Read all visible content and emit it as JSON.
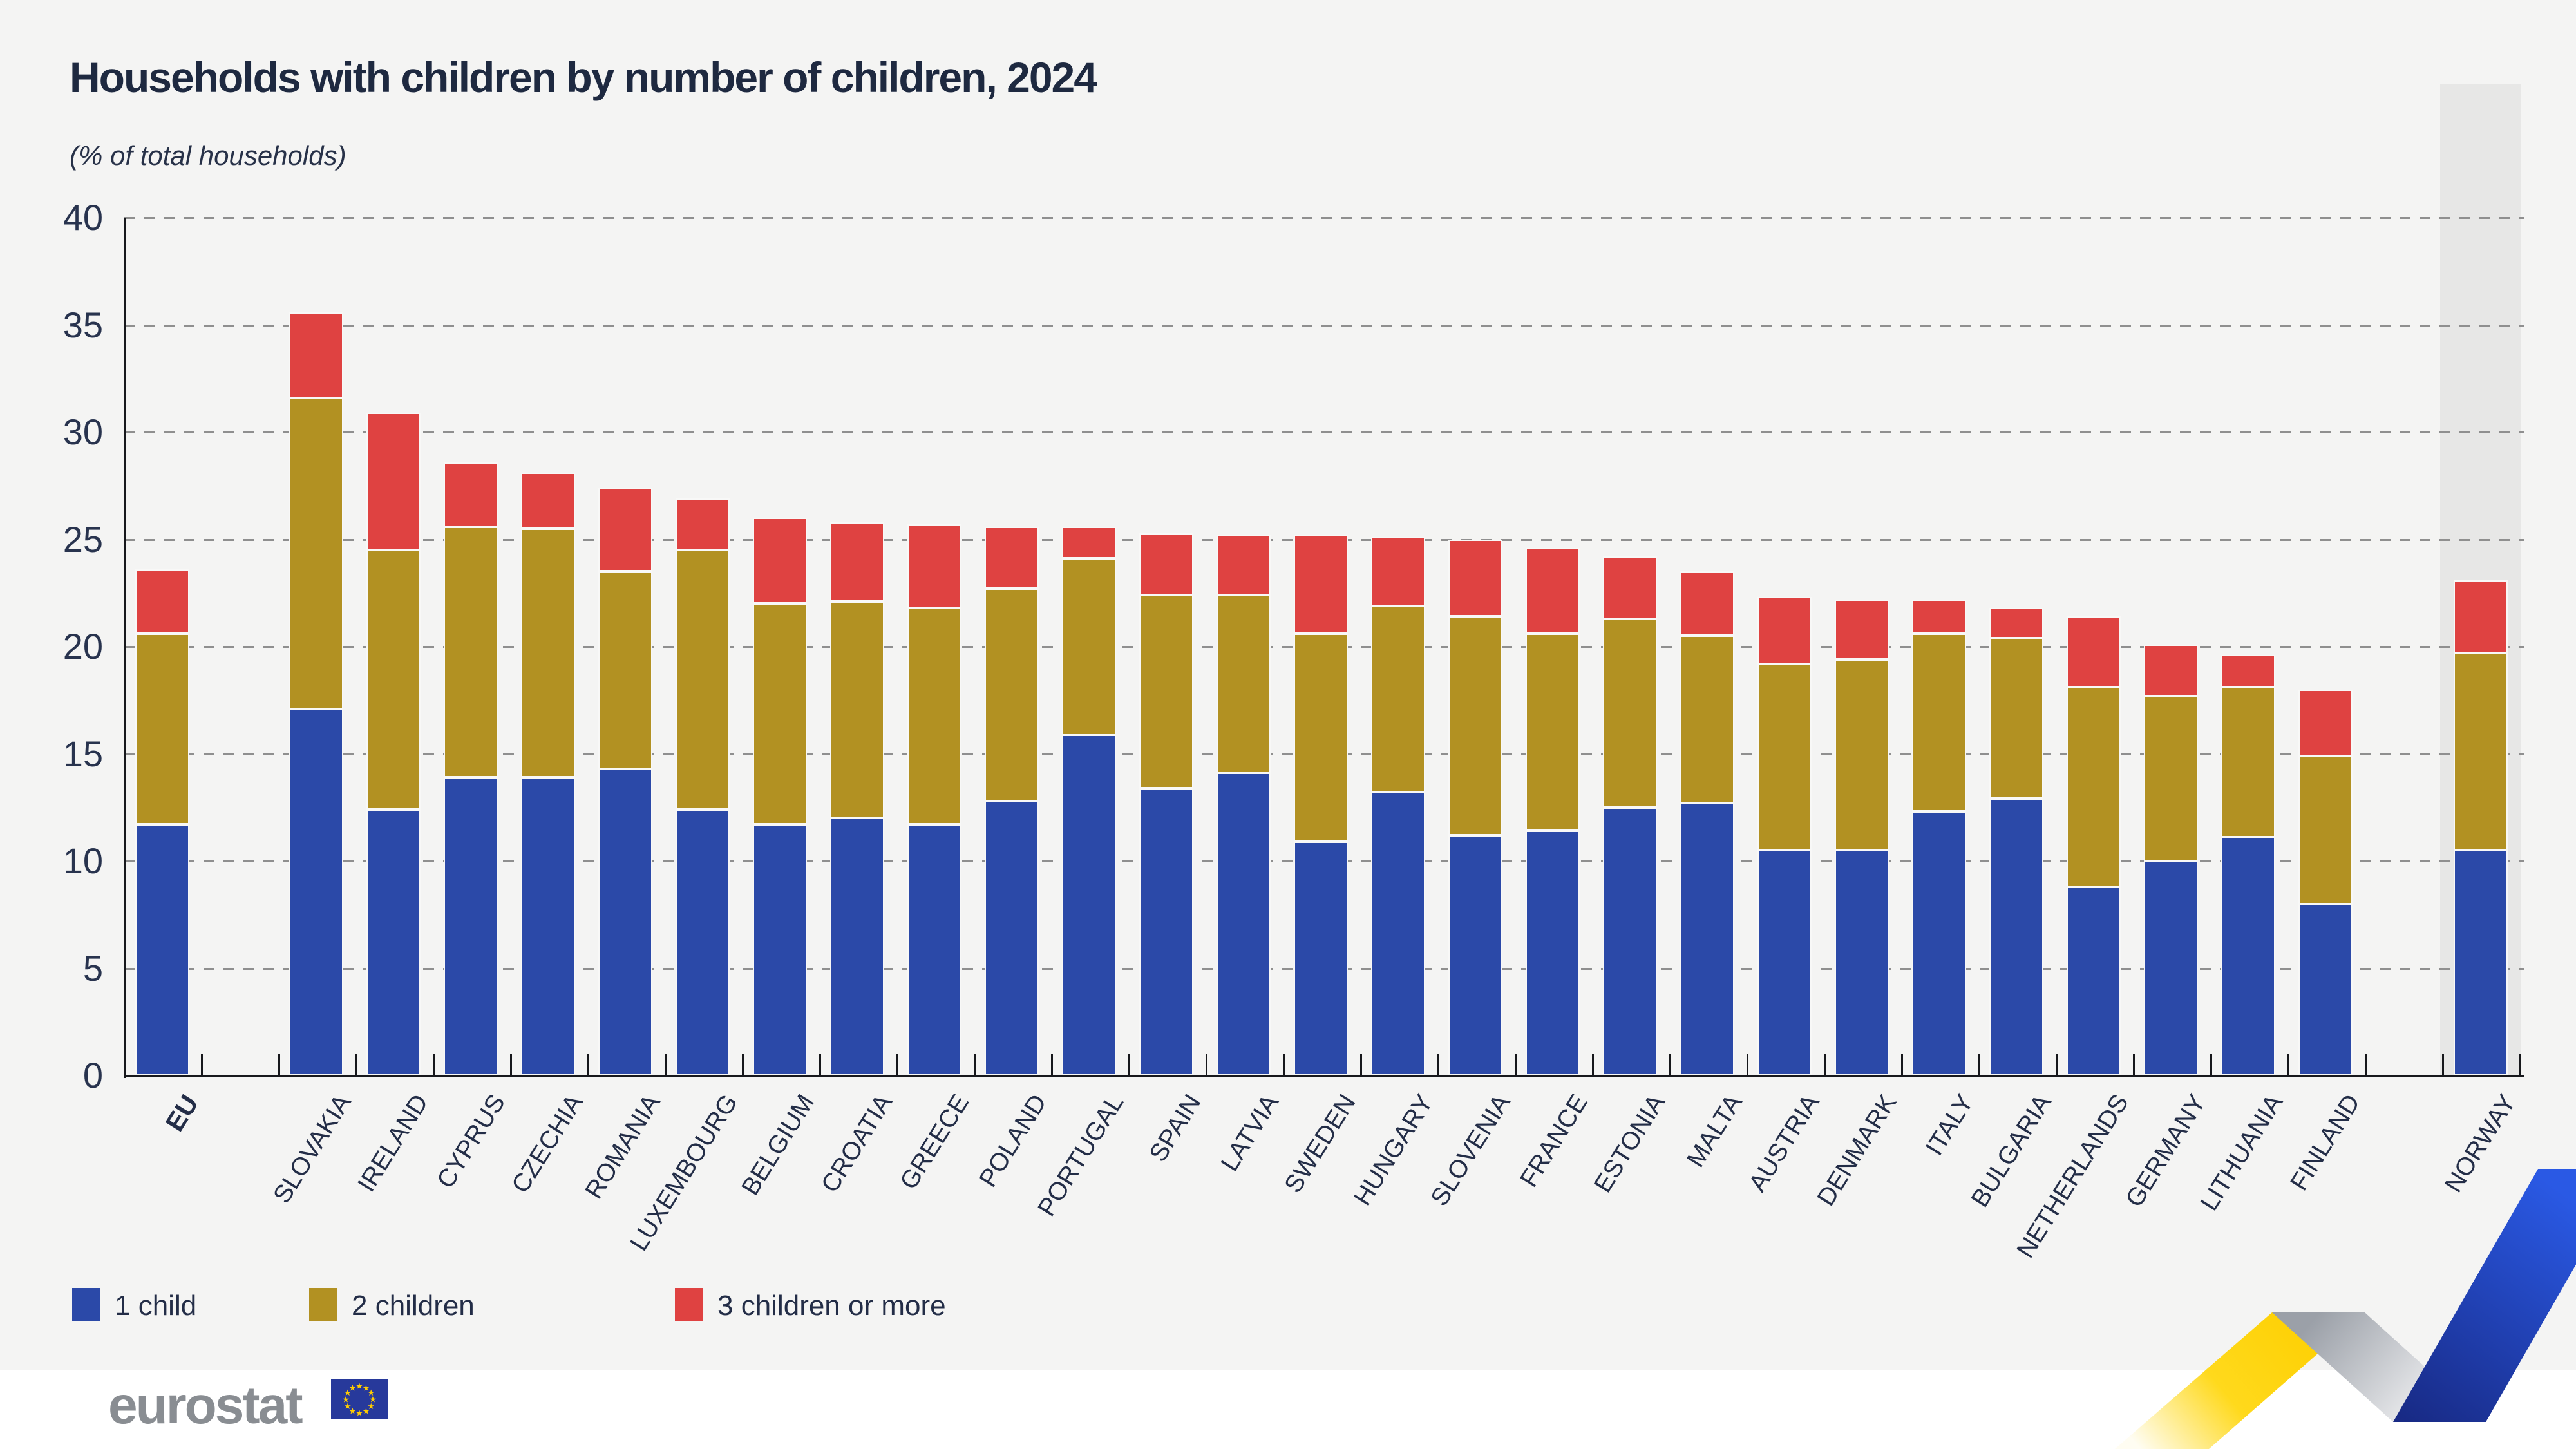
{
  "chart_data": {
    "type": "bar",
    "stacked": true,
    "title": "Households with children by number of children, 2024",
    "subtitle": "(% of total households)",
    "ylim": [
      0,
      40
    ],
    "yticks": [
      0,
      5,
      10,
      15,
      20,
      25,
      30,
      35,
      40
    ],
    "grid": "dashed horizontal",
    "legend_position": "bottom-left",
    "highlighted_category": "NORWAY",
    "highlight_band_color": "#e7e7e6",
    "categories": [
      "EU",
      "SLOVAKIA",
      "IRELAND",
      "CYPRUS",
      "CZECHIA",
      "ROMANIA",
      "LUXEMBOURG",
      "BELGIUM",
      "CROATIA",
      "GREECE",
      "POLAND",
      "PORTUGAL",
      "SPAIN",
      "LATVIA",
      "SWEDEN",
      "HUNGARY",
      "SLOVENIA",
      "FRANCE",
      "ESTONIA",
      "MALTA",
      "AUSTRIA",
      "DENMARK",
      "ITALY",
      "BULGARIA",
      "NETHERLANDS",
      "GERMANY",
      "LITHUANIA",
      "FINLAND",
      "NORWAY"
    ],
    "series": [
      {
        "name": "1 child",
        "color": "#2b49a8",
        "values": [
          11.7,
          17.1,
          12.4,
          13.9,
          13.9,
          14.3,
          12.4,
          11.7,
          12.0,
          11.7,
          12.8,
          15.9,
          13.4,
          14.1,
          10.9,
          13.2,
          11.2,
          11.4,
          12.5,
          12.7,
          10.5,
          10.5,
          12.3,
          12.9,
          8.8,
          10.0,
          11.1,
          8.0,
          10.5
        ]
      },
      {
        "name": "2 children",
        "color": "#b29122",
        "values": [
          8.9,
          14.5,
          12.1,
          11.7,
          11.6,
          9.2,
          12.1,
          10.3,
          10.1,
          10.1,
          9.9,
          8.2,
          9.0,
          8.3,
          9.7,
          8.7,
          10.2,
          9.2,
          8.8,
          7.8,
          8.7,
          8.9,
          8.3,
          7.5,
          9.3,
          7.7,
          7.0,
          6.9,
          9.2
        ]
      },
      {
        "name": "3 children or more",
        "color": "#df4241",
        "values": [
          3.0,
          4.0,
          6.4,
          3.0,
          2.6,
          3.9,
          2.4,
          4.0,
          3.7,
          3.9,
          2.9,
          1.5,
          2.9,
          2.8,
          4.6,
          3.2,
          3.6,
          4.0,
          2.9,
          3.0,
          3.1,
          2.8,
          1.6,
          1.4,
          3.3,
          2.4,
          1.5,
          3.1,
          3.4
        ]
      }
    ],
    "totals": [
      23.6,
      35.6,
      30.9,
      28.6,
      28.1,
      27.4,
      26.9,
      26.0,
      25.8,
      25.7,
      25.6,
      25.6,
      25.3,
      25.2,
      25.2,
      25.1,
      25.0,
      24.6,
      24.2,
      23.5,
      22.3,
      22.2,
      22.2,
      21.8,
      21.4,
      20.1,
      19.6,
      18.0,
      23.1
    ]
  },
  "footer": {
    "logo_text": "eurostat"
  },
  "colors": {
    "background": "#f4f4f3",
    "footer_background": "#ffffff",
    "axis": "#17181c",
    "text": "#232d47",
    "logo_gray": "#898d92",
    "flag_blue": "#27399b",
    "flag_star_yellow": "#ffcc00",
    "ribbon_yellow": "#ffd617",
    "ribbon_blue": "#2450d0",
    "ribbon_gray": "#a8acb3"
  }
}
